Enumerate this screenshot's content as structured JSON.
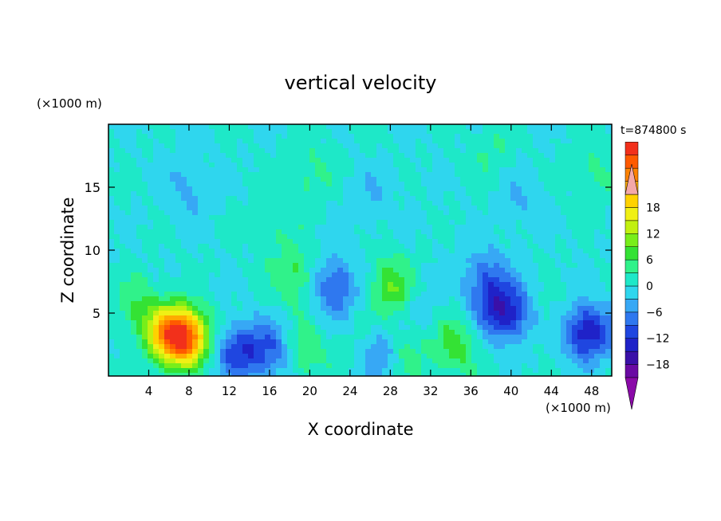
{
  "chart_data": {
    "type": "heatmap",
    "title": "vertical velocity",
    "xlabel": "X coordinate",
    "ylabel": "Z coordinate",
    "x_unit": "(×1000 m)",
    "y_unit": "(×1000 m)",
    "time_label": "t=874800 s",
    "xlim": [
      0,
      50
    ],
    "ylim": [
      0,
      20
    ],
    "x_ticks": [
      4,
      8,
      12,
      16,
      20,
      24,
      28,
      32,
      36,
      40,
      44,
      48
    ],
    "y_ticks": [
      5,
      10,
      15
    ],
    "colorbar": {
      "min": -21,
      "max": 21,
      "step": 3,
      "tick_values": [
        -18,
        -12,
        -6,
        0,
        6,
        12,
        18
      ],
      "tick_labels": [
        "−18",
        "−12",
        "−6",
        "0",
        "6",
        "12",
        "18"
      ],
      "colors": [
        "#6a0aa3",
        "#3a10a8",
        "#1f22c8",
        "#1f46e0",
        "#2f78ef",
        "#37a8f5",
        "#2fd6ee",
        "#1ee8c8",
        "#30f28a",
        "#34e234",
        "#78ee1a",
        "#c2f010",
        "#f0f015",
        "#ffd200",
        "#ffaa00",
        "#ff8200",
        "#ff5a00",
        "#f2301b"
      ],
      "extend_low_color": "#8a0aa8",
      "extend_high_color": "#f4a8a8"
    },
    "features": [
      {
        "x": 6.5,
        "z": 3.4,
        "w": 18
      },
      {
        "x": 7.5,
        "z": 2.9,
        "w": 20
      },
      {
        "x": 3.0,
        "z": 5.5,
        "w": 6
      },
      {
        "x": 18.5,
        "z": 8.0,
        "w": 7
      },
      {
        "x": 19.5,
        "z": 2.0,
        "w": 6
      },
      {
        "x": 28.0,
        "z": 7.0,
        "w": 9
      },
      {
        "x": 29.5,
        "z": 2.0,
        "w": 6
      },
      {
        "x": 34.5,
        "z": 2.5,
        "w": 8
      },
      {
        "x": 25.0,
        "z": 3.0,
        "w": 3
      },
      {
        "x": 44.0,
        "z": 4.5,
        "w": 3
      },
      {
        "x": 13.0,
        "z": 2.0,
        "w": -12
      },
      {
        "x": 16.5,
        "z": 2.0,
        "w": -7
      },
      {
        "x": 22.5,
        "z": 7.0,
        "w": -10
      },
      {
        "x": 27.0,
        "z": 2.0,
        "w": -8
      },
      {
        "x": 37.5,
        "z": 7.5,
        "w": -9
      },
      {
        "x": 39.5,
        "z": 5.0,
        "w": -14
      },
      {
        "x": 47.5,
        "z": 3.5,
        "w": -15
      },
      {
        "x": 8.0,
        "z": 15.0,
        "w": -4
      },
      {
        "x": 26.0,
        "z": 14.0,
        "w": -3
      },
      {
        "x": 41.0,
        "z": 14.0,
        "w": -3
      },
      {
        "x": 31.0,
        "z": 5.0,
        "w": -3
      },
      {
        "x": 16.0,
        "z": 12.0,
        "w": 3
      },
      {
        "x": 20.0,
        "z": 16.0,
        "w": 4
      },
      {
        "x": 38.0,
        "z": 18.0,
        "w": 3
      },
      {
        "x": 48.0,
        "z": 16.0,
        "w": 4
      }
    ]
  }
}
